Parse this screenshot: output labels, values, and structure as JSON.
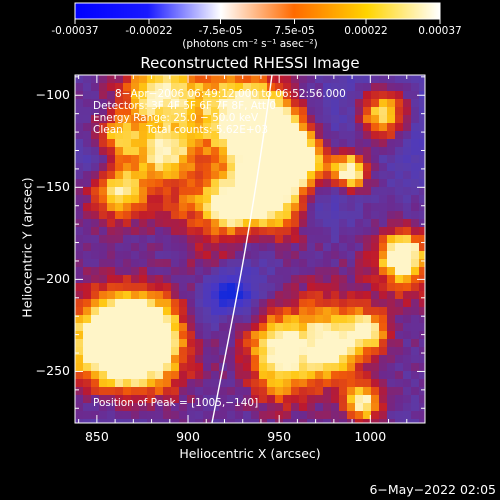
{
  "colorbar": {
    "gradient": [
      "#0000ff",
      "#1a1aff",
      "#ffffff",
      "#ff6a00",
      "#ffd400",
      "#ffffff"
    ],
    "ticks": [
      "-0.00037",
      "-0.00022",
      "-7.5e-05",
      "7.5e-05",
      "0.00022",
      "0.00037"
    ],
    "tick_values": [
      -0.00037,
      -0.00022,
      -7.5e-05,
      7.5e-05,
      0.00022,
      0.00037
    ],
    "unit": "(photons cm⁻² s⁻¹ asec⁻²)"
  },
  "plot": {
    "title": "Reconstructed RHESSI Image",
    "xlabel": "Heliocentric X (arcsec)",
    "ylabel": "Heliocentric Y (arcsec)",
    "xlim": [
      838,
      1030
    ],
    "ylim": [
      -278,
      -89
    ],
    "xticks": [
      "850",
      "900",
      "950",
      "1000"
    ],
    "xtick_values": [
      850,
      900,
      950,
      1000
    ],
    "yticks": [
      "−100",
      "−150",
      "−200",
      "−250"
    ],
    "ytick_values": [
      -100,
      -150,
      -200,
      -250
    ],
    "limb_color": "#ffffff"
  },
  "annotations": {
    "time_range": "8−Apr−2006 06:49:12.000 to 06:52:56.000",
    "detectors": "Detectors: 3F 4F 5F 6F 7F 8F, Att 0",
    "energy": "Energy Range: 25.0 − 50.0 keV",
    "clean": "Clean",
    "total_counts": "Total counts: 5.62E+03",
    "peak": "Position of Peak = [1005,−140]"
  },
  "footer": {
    "date": "6−May−2022 02:05"
  }
}
